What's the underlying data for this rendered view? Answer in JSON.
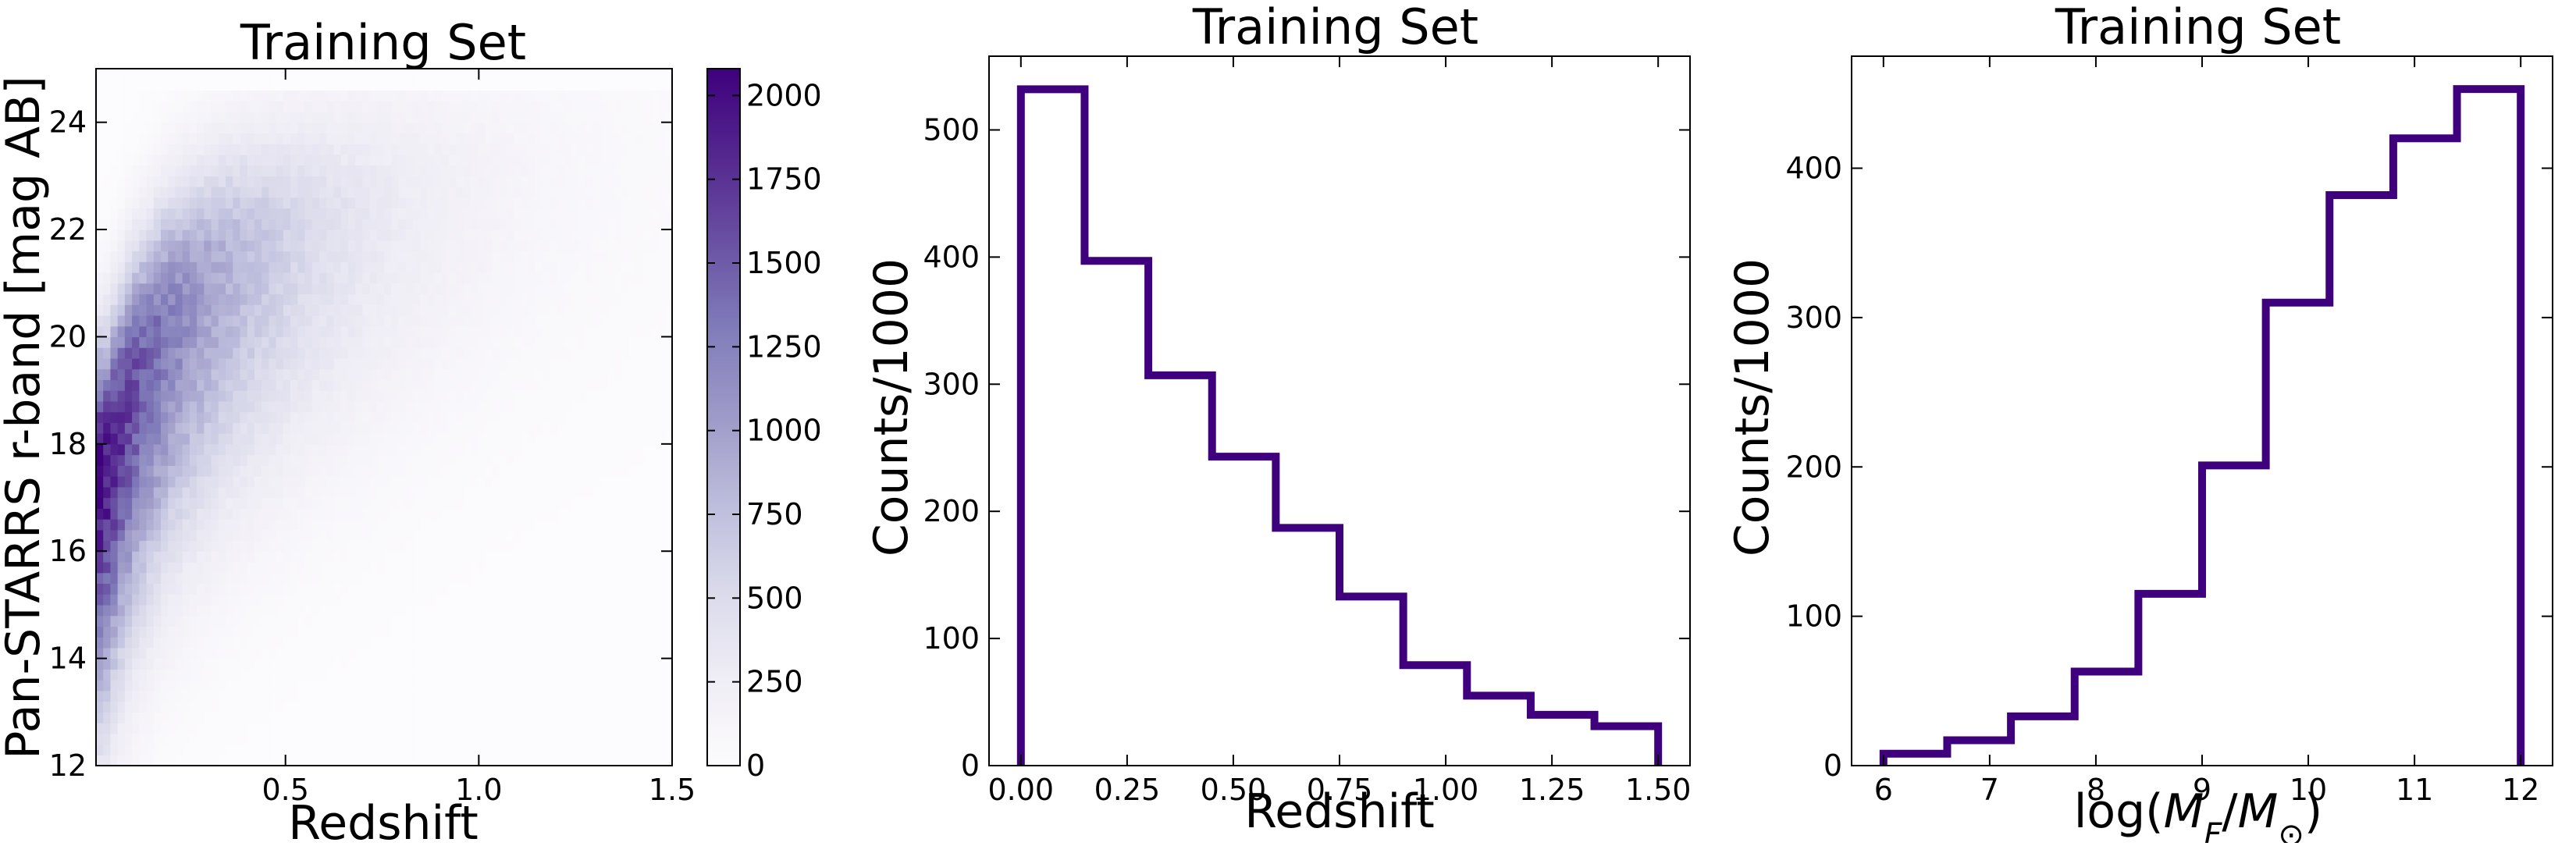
{
  "chart_data": [
    {
      "type": "heatmap",
      "title": "Training Set",
      "xlabel": "Redshift",
      "ylabel": "Pan-STARRS r-band [mag AB]",
      "xlim": [
        0.01,
        1.5
      ],
      "ylim": [
        12,
        25
      ],
      "xticks": [
        0.5,
        1.0,
        1.5
      ],
      "xtick_labels": [
        "0.5",
        "1.0",
        "1.5"
      ],
      "yticks": [
        12,
        14,
        16,
        18,
        20,
        22,
        24
      ],
      "ytick_labels": [
        "12",
        "14",
        "16",
        "18",
        "20",
        "22",
        "24"
      ],
      "colorbar": {
        "min": 0,
        "max": 2080,
        "ticks": [
          0,
          250,
          500,
          750,
          1000,
          1250,
          1500,
          1750,
          2000
        ],
        "tick_labels": [
          "0",
          "250",
          "500",
          "750",
          "1000",
          "1250",
          "1500",
          "1750",
          "2000"
        ],
        "colormap": "Purples",
        "low_color": "#fcfbfd",
        "high_color": "#3f007d"
      },
      "density_model": {
        "ridge_points": [
          [
            0.03,
            17.5
          ],
          [
            0.1,
            19.0
          ],
          [
            0.2,
            20.3
          ],
          [
            0.35,
            21.3
          ],
          [
            0.55,
            22.0
          ],
          [
            0.8,
            22.6
          ],
          [
            1.1,
            23.2
          ],
          [
            1.5,
            23.6
          ]
        ],
        "peak_count": 2080,
        "z_scale": 0.4,
        "mag_scale_low": 3.0,
        "mag_scale_high": 1.6,
        "faint_cutoff_mag": 24.7
      },
      "grid": false
    },
    {
      "type": "histogram",
      "title": "Training Set",
      "xlabel": "Redshift",
      "ylabel": "Counts/1000",
      "bin_edges": [
        0.0,
        0.15,
        0.3,
        0.45,
        0.6,
        0.75,
        0.9,
        1.05,
        1.2,
        1.35,
        1.5
      ],
      "values": [
        532,
        397,
        307,
        243,
        187,
        133,
        79,
        55,
        40,
        31
      ],
      "xlim": [
        -0.075,
        1.575
      ],
      "ylim": [
        0,
        558
      ],
      "xticks": [
        0.0,
        0.25,
        0.5,
        0.75,
        1.0,
        1.25,
        1.5
      ],
      "xtick_labels": [
        "0.00",
        "0.25",
        "0.50",
        "0.75",
        "1.00",
        "1.25",
        "1.50"
      ],
      "yticks": [
        0,
        100,
        200,
        300,
        400,
        500
      ],
      "ytick_labels": [
        "0",
        "100",
        "200",
        "300",
        "400",
        "500"
      ],
      "color": "#3f007d",
      "grid": false
    },
    {
      "type": "histogram",
      "title": "Training Set",
      "xlabel": "log(M_F/M_⊙)",
      "ylabel": "Counts/1000",
      "bin_edges": [
        6.0,
        6.6,
        7.2,
        7.8,
        8.4,
        9.0,
        9.6,
        10.2,
        10.8,
        11.4,
        12.0
      ],
      "values": [
        8,
        17,
        33,
        63,
        115,
        201,
        310,
        382,
        420,
        453
      ],
      "xlim": [
        5.7,
        12.3
      ],
      "ylim": [
        0,
        475
      ],
      "xticks": [
        6,
        7,
        8,
        9,
        10,
        11,
        12
      ],
      "xtick_labels": [
        "6",
        "7",
        "8",
        "9",
        "10",
        "11",
        "12"
      ],
      "yticks": [
        0,
        100,
        200,
        300,
        400
      ],
      "ytick_labels": [
        "0",
        "100",
        "200",
        "300",
        "400"
      ],
      "color": "#3f007d",
      "grid": false
    }
  ]
}
